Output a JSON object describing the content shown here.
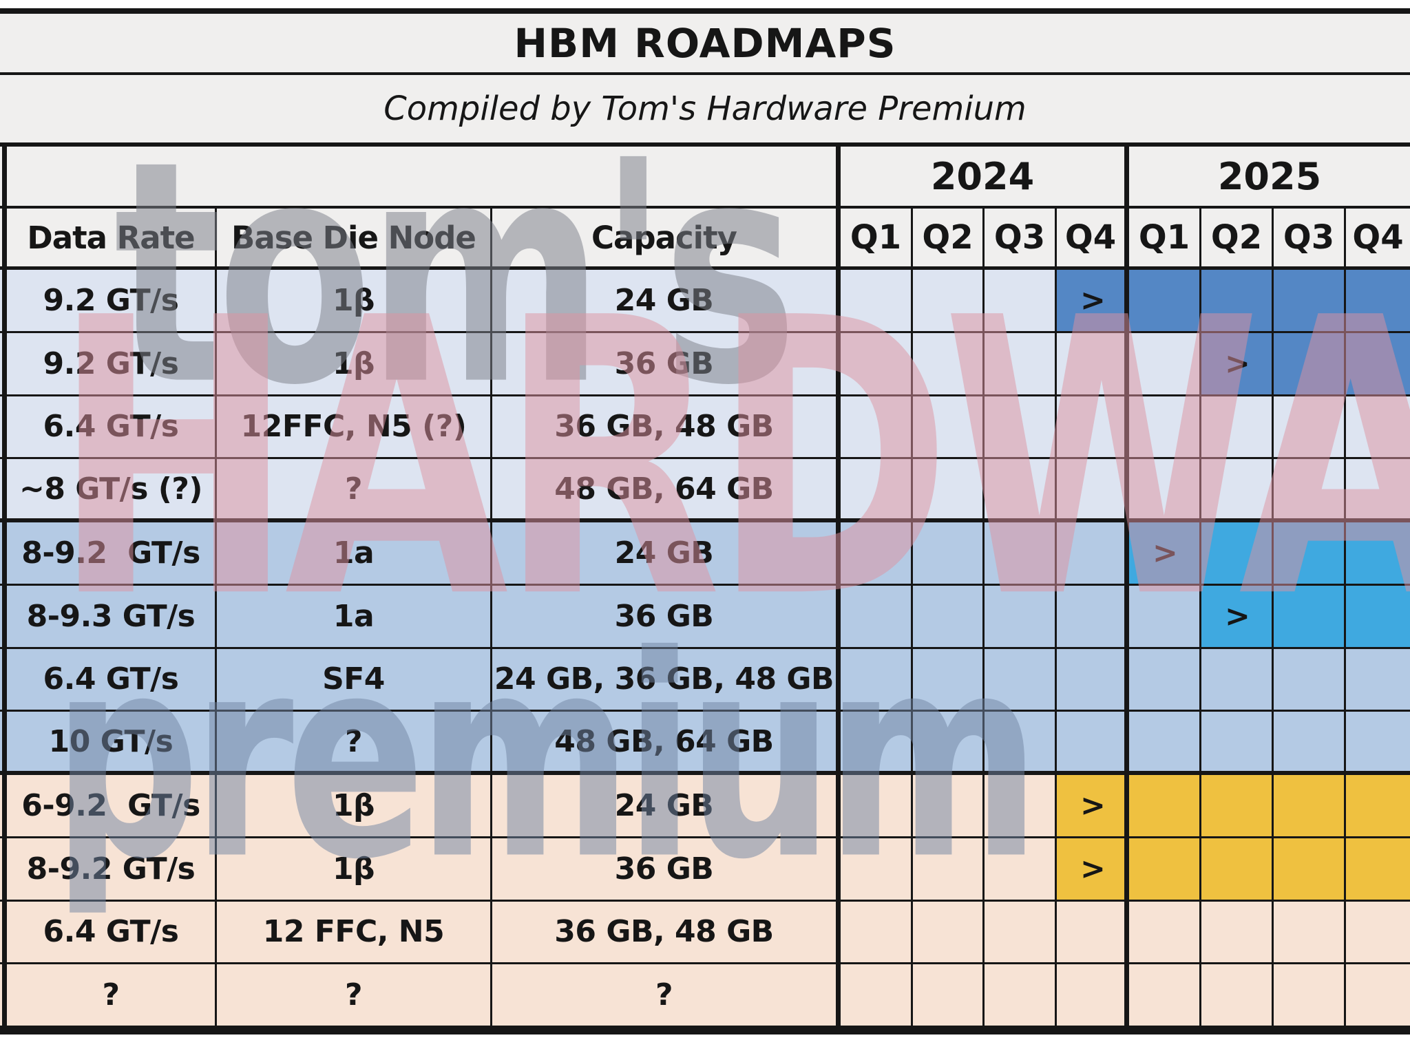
{
  "chart_data": {
    "type": "table",
    "title": "HBM ROADMAPS",
    "subtitle": "Compiled by Tom's Hardware Premium",
    "year_groups": [
      {
        "label": "2024",
        "span": 4
      },
      {
        "label": "2025",
        "span": 4
      }
    ],
    "column_headers": [
      "Data Rate",
      "Base Die Node",
      "Capacity"
    ],
    "quarter_headers": [
      "Q1",
      "Q2",
      "Q3",
      "Q4",
      "Q1",
      "Q2",
      "Q3",
      "Q4"
    ],
    "quarter_timeline": [
      "2024-Q1",
      "2024-Q2",
      "2024-Q3",
      "2024-Q4",
      "2025-Q1",
      "2025-Q2",
      "2025-Q3",
      "2025-Q4"
    ],
    "rows": [
      {
        "data_rate": "9.2 GT/s",
        "base_die_node": "1β",
        "capacity": "24 GB",
        "group": 0,
        "marker_quarter": 3,
        "fill_start": 3,
        "fill_end": 7
      },
      {
        "data_rate": "9.2 GT/s",
        "base_die_node": "1β",
        "capacity": "36 GB",
        "group": 0,
        "marker_quarter": 5,
        "fill_start": 5,
        "fill_end": 7
      },
      {
        "data_rate": "6.4 GT/s",
        "base_die_node": "12FFC, N5 (?)",
        "capacity": "36 GB, 48 GB",
        "group": 0,
        "marker_quarter": null,
        "fill_start": null,
        "fill_end": null
      },
      {
        "data_rate": "~8 GT/s (?)",
        "base_die_node": "?",
        "capacity": "48 GB, 64 GB",
        "group": 0,
        "marker_quarter": null,
        "fill_start": null,
        "fill_end": null
      },
      {
        "data_rate": "8-9.2  GT/s",
        "base_die_node": "1a",
        "capacity": "24 GB",
        "group": 1,
        "marker_quarter": 4,
        "fill_start": 4,
        "fill_end": 7
      },
      {
        "data_rate": "8-9.3 GT/s",
        "base_die_node": "1a",
        "capacity": "36 GB",
        "group": 1,
        "marker_quarter": 5,
        "fill_start": 5,
        "fill_end": 7
      },
      {
        "data_rate": "6.4 GT/s",
        "base_die_node": "SF4",
        "capacity": "24 GB, 36 GB, 48 GB",
        "group": 1,
        "marker_quarter": null,
        "fill_start": null,
        "fill_end": null
      },
      {
        "data_rate": "10 GT/s",
        "base_die_node": "?",
        "capacity": "48 GB, 64 GB",
        "group": 1,
        "marker_quarter": null,
        "fill_start": null,
        "fill_end": null
      },
      {
        "data_rate": "6-9.2  GT/s",
        "base_die_node": "1β",
        "capacity": "24 GB",
        "group": 2,
        "marker_quarter": 3,
        "fill_start": 3,
        "fill_end": 7
      },
      {
        "data_rate": "8-9.2 GT/s",
        "base_die_node": "1β",
        "capacity": "36 GB",
        "group": 2,
        "marker_quarter": 3,
        "fill_start": 3,
        "fill_end": 7
      },
      {
        "data_rate": "6.4 GT/s",
        "base_die_node": "12 FFC, N5",
        "capacity": "36 GB, 48 GB",
        "group": 2,
        "marker_quarter": null,
        "fill_start": null,
        "fill_end": null
      },
      {
        "data_rate": "?",
        "base_die_node": "?",
        "capacity": "?",
        "group": 2,
        "marker_quarter": null,
        "fill_start": null,
        "fill_end": null
      }
    ]
  },
  "groups": [
    {
      "name": "roadmap-group-1",
      "row_bg": "#dde4f1",
      "fill": "#5487c5"
    },
    {
      "name": "roadmap-group-2",
      "row_bg": "#b4cae4",
      "fill": "#3fa9e0"
    },
    {
      "name": "roadmap-group-3",
      "row_bg": "#f7e3d5",
      "fill": "#efc140"
    }
  ],
  "group_end_rows": [
    3,
    7
  ],
  "marker_glyph": ">",
  "watermark": {
    "line1": "tom's",
    "line2": "HARDWARE",
    "line3": "premium"
  },
  "colors": {
    "grid_line": "#161616",
    "header_bg": "#f0efee",
    "text": "#161616",
    "page_bg": "#ffffff",
    "fill_dark_blue": "#5487c5",
    "fill_cyan_blue": "#3fa9e0",
    "fill_yellow": "#efc140",
    "row_light_blue": "#dde4f1",
    "row_medium_blue": "#b4cae4",
    "row_peach": "#f7e3d5"
  }
}
